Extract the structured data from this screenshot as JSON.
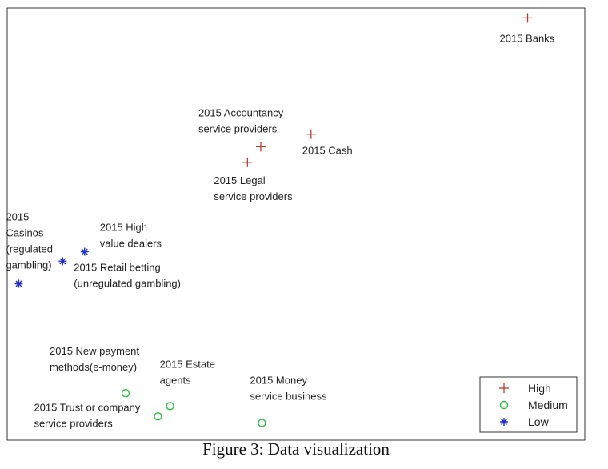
{
  "caption": "Figure 3: Data visualization",
  "chart_data": {
    "type": "scatter",
    "title": "",
    "xlabel": "",
    "ylabel": "",
    "xlim": [
      0,
      100
    ],
    "ylim": [
      0,
      100
    ],
    "grid": false,
    "axis_ticks": false,
    "legend_position": "bottom-right",
    "colors": {
      "High": "#c0392b",
      "Medium": "#22c03a",
      "Low": "#1a2ad6"
    },
    "series": [
      {
        "name": "High",
        "marker": "plus",
        "points": [
          {
            "x": 90.1,
            "y": 97.7,
            "label": [
              "2015 Banks"
            ]
          },
          {
            "x": 52.6,
            "y": 70.8,
            "label": [
              "2015 Cash"
            ]
          },
          {
            "x": 43.9,
            "y": 67.9,
            "label": [
              "2015 Accountancy",
              "service providers"
            ]
          },
          {
            "x": 41.6,
            "y": 64.3,
            "label": [
              "2015 Legal",
              "service providers"
            ]
          }
        ]
      },
      {
        "name": "Medium",
        "marker": "circle",
        "points": [
          {
            "x": 20.5,
            "y": 10.9,
            "label": [
              "2015 New payment",
              "methods(e-money)"
            ]
          },
          {
            "x": 28.2,
            "y": 7.9,
            "label": [
              "2015 Estate",
              "agents"
            ]
          },
          {
            "x": 26.1,
            "y": 5.5,
            "label": [
              "2015 Trust or  company",
              "service providers"
            ]
          },
          {
            "x": 44.1,
            "y": 4.0,
            "label": [
              "2015 Money",
              "service business"
            ]
          }
        ]
      },
      {
        "name": "Low",
        "marker": "asterisk",
        "points": [
          {
            "x": 13.4,
            "y": 43.6,
            "label": [
              "2015 High",
              "value dealers"
            ]
          },
          {
            "x": 9.6,
            "y": 41.4,
            "label": [
              "2015 Retail betting",
              "(unregulated gambling)"
            ]
          },
          {
            "x": 2.0,
            "y": 36.2,
            "label": [
              "2015",
              "Casinos",
              "(regulated",
              "gambling)"
            ]
          }
        ]
      }
    ]
  }
}
